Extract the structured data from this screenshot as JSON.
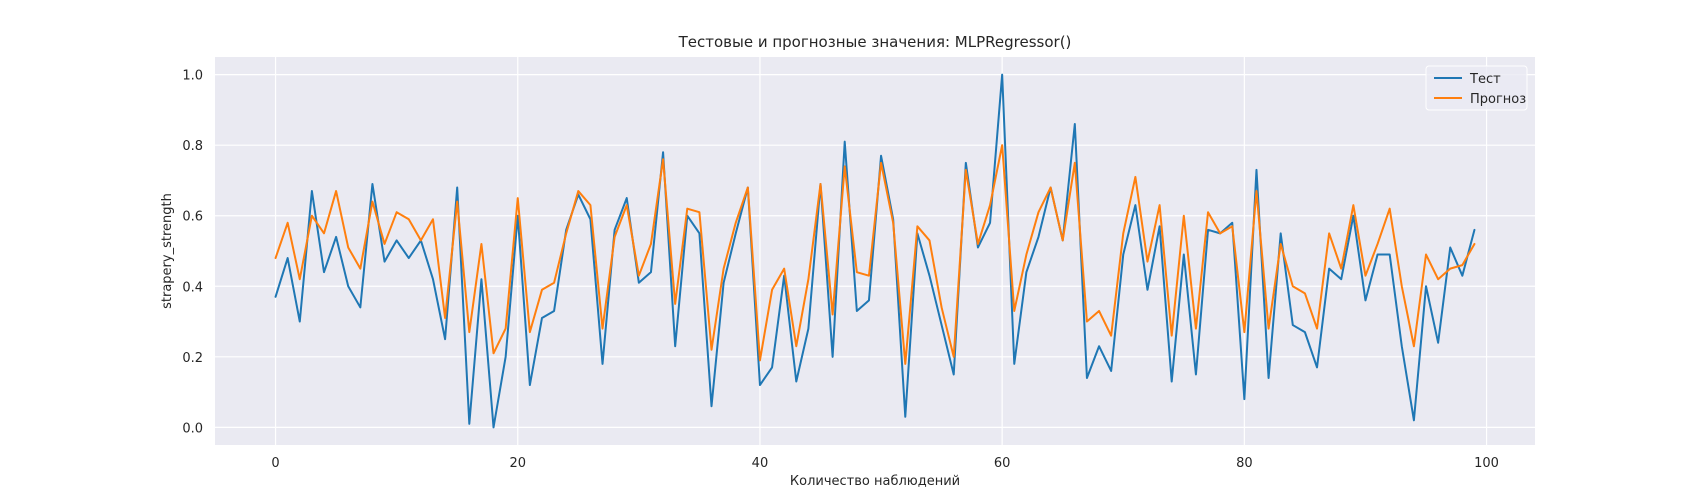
{
  "chart_data": {
    "type": "line",
    "title": "Тестовые и прогнозные значения: MLPRegressor()",
    "xlabel": "Количество наблюдений",
    "ylabel": "strapery_strength",
    "xlim": [
      -5,
      104
    ],
    "ylim": [
      -0.05,
      1.05
    ],
    "xticks": [
      0,
      20,
      40,
      60,
      80,
      100
    ],
    "yticks": [
      0.0,
      0.2,
      0.4,
      0.6,
      0.8,
      1.0
    ],
    "grid": true,
    "legend_position": "top-right",
    "x": [
      0,
      1,
      2,
      3,
      4,
      5,
      6,
      7,
      8,
      9,
      10,
      11,
      12,
      13,
      14,
      15,
      16,
      17,
      18,
      19,
      20,
      21,
      22,
      23,
      24,
      25,
      26,
      27,
      28,
      29,
      30,
      31,
      32,
      33,
      34,
      35,
      36,
      37,
      38,
      39,
      40,
      41,
      42,
      43,
      44,
      45,
      46,
      47,
      48,
      49,
      50,
      51,
      52,
      53,
      54,
      55,
      56,
      57,
      58,
      59,
      60,
      61,
      62,
      63,
      64,
      65,
      66,
      67,
      68,
      69,
      70,
      71,
      72,
      73,
      74,
      75,
      76,
      77,
      78,
      79,
      80,
      81,
      82,
      83,
      84,
      85,
      86,
      87,
      88,
      89,
      90,
      91,
      92,
      93,
      94,
      95,
      96,
      97,
      98,
      99
    ],
    "series": [
      {
        "name": "Тест",
        "color": "#1f77b4",
        "values": [
          0.37,
          0.48,
          0.3,
          0.67,
          0.44,
          0.54,
          0.4,
          0.34,
          0.69,
          0.47,
          0.53,
          0.48,
          0.53,
          0.42,
          0.25,
          0.68,
          0.01,
          0.42,
          0.0,
          0.2,
          0.6,
          0.12,
          0.31,
          0.33,
          0.56,
          0.66,
          0.59,
          0.18,
          0.56,
          0.65,
          0.41,
          0.44,
          0.78,
          0.23,
          0.6,
          0.55,
          0.06,
          0.41,
          0.55,
          0.68,
          0.12,
          0.17,
          0.43,
          0.13,
          0.28,
          0.69,
          0.2,
          0.81,
          0.33,
          0.36,
          0.77,
          0.59,
          0.03,
          0.55,
          0.43,
          0.29,
          0.15,
          0.75,
          0.51,
          0.58,
          1.0,
          0.18,
          0.44,
          0.54,
          0.68,
          0.53,
          0.86,
          0.14,
          0.23,
          0.16,
          0.49,
          0.63,
          0.39,
          0.57,
          0.13,
          0.49,
          0.15,
          0.56,
          0.55,
          0.58,
          0.08,
          0.73,
          0.14,
          0.55,
          0.29,
          0.27,
          0.17,
          0.45,
          0.42,
          0.6,
          0.36,
          0.49,
          0.49,
          0.23,
          0.02,
          0.4,
          0.24,
          0.51,
          0.43,
          0.56
        ]
      },
      {
        "name": "Прогноз",
        "color": "#ff7f0e",
        "values": [
          0.48,
          0.58,
          0.42,
          0.6,
          0.55,
          0.67,
          0.51,
          0.45,
          0.64,
          0.52,
          0.61,
          0.59,
          0.53,
          0.59,
          0.31,
          0.64,
          0.27,
          0.52,
          0.21,
          0.28,
          0.65,
          0.27,
          0.39,
          0.41,
          0.55,
          0.67,
          0.63,
          0.28,
          0.54,
          0.63,
          0.43,
          0.52,
          0.76,
          0.35,
          0.62,
          0.61,
          0.22,
          0.45,
          0.58,
          0.68,
          0.19,
          0.39,
          0.45,
          0.23,
          0.42,
          0.69,
          0.32,
          0.74,
          0.44,
          0.43,
          0.75,
          0.58,
          0.18,
          0.57,
          0.53,
          0.34,
          0.2,
          0.73,
          0.52,
          0.63,
          0.8,
          0.33,
          0.49,
          0.61,
          0.68,
          0.53,
          0.75,
          0.3,
          0.33,
          0.26,
          0.55,
          0.71,
          0.47,
          0.63,
          0.26,
          0.6,
          0.28,
          0.61,
          0.55,
          0.57,
          0.27,
          0.67,
          0.28,
          0.52,
          0.4,
          0.38,
          0.28,
          0.55,
          0.45,
          0.63,
          0.43,
          0.52,
          0.62,
          0.4,
          0.23,
          0.49,
          0.42,
          0.45,
          0.46,
          0.52
        ]
      }
    ]
  }
}
